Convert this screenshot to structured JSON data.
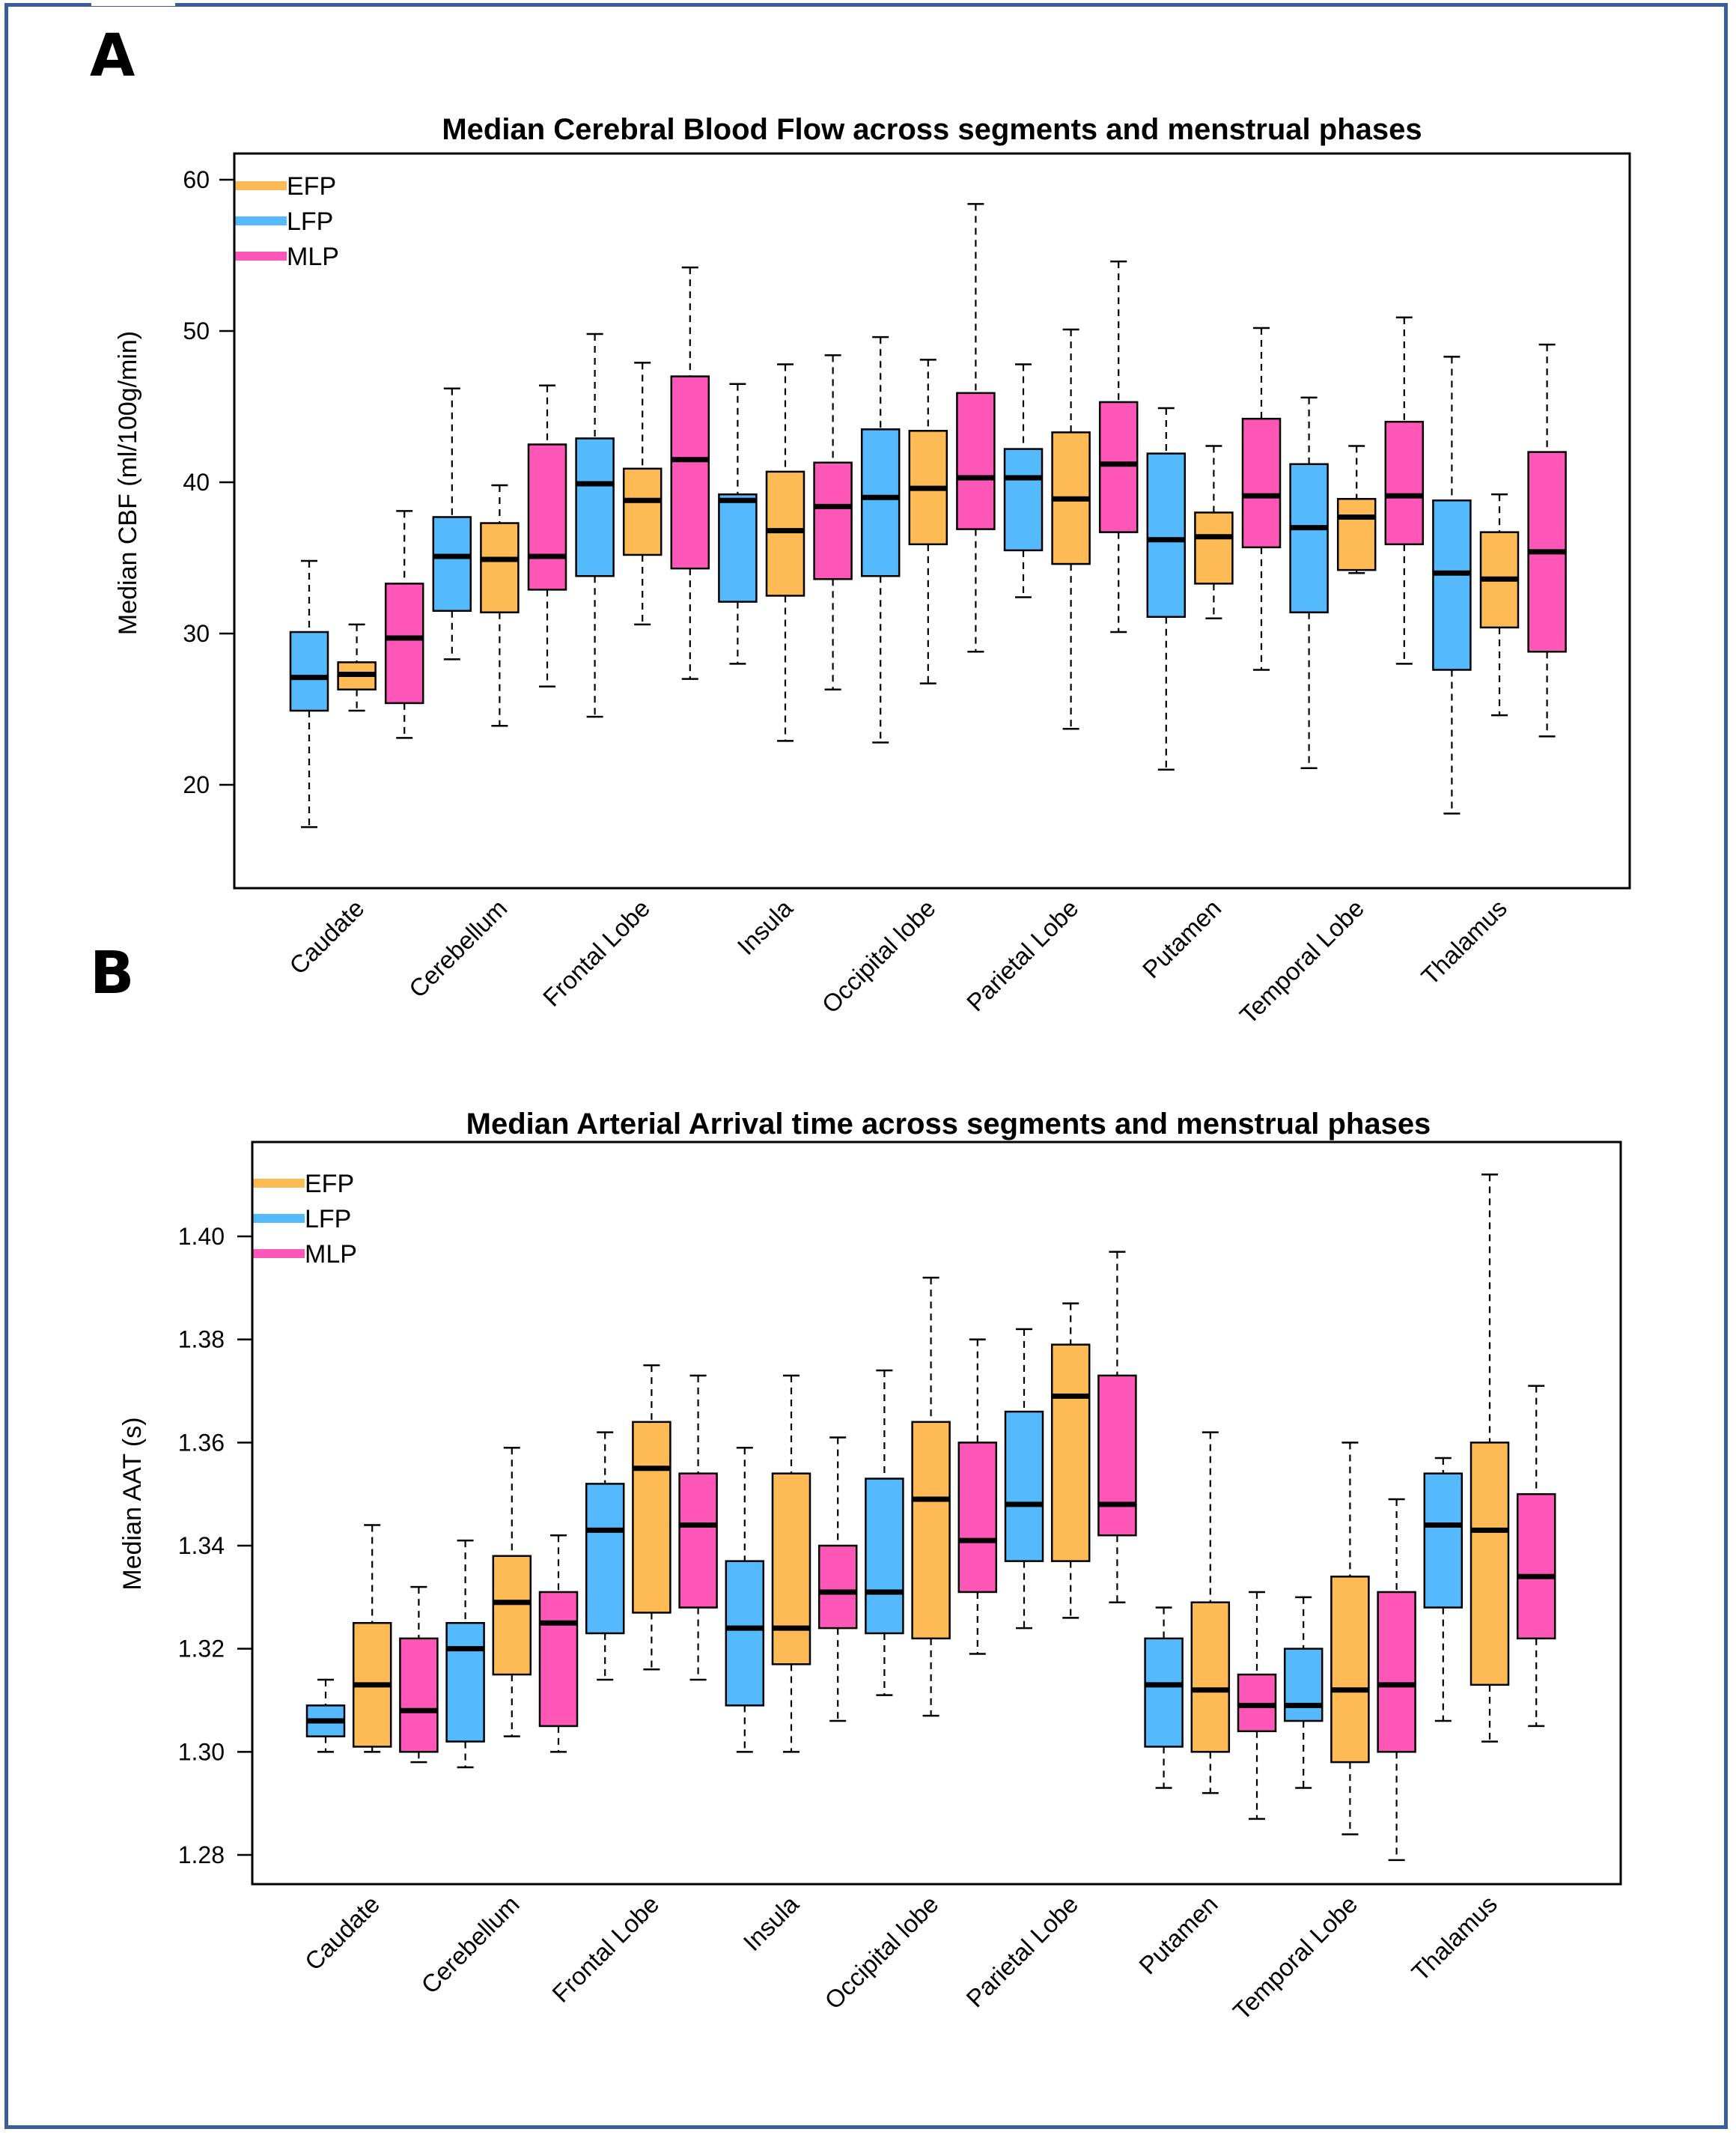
{
  "figure": {
    "panel_labels": [
      "A",
      "B"
    ]
  },
  "colors": {
    "EFP": "#FEBA54",
    "LFP": "#55BAFD",
    "MLP": "#FF57B8",
    "frame": "#3a5e9c"
  },
  "chart_data": [
    {
      "type": "boxplot",
      "panel": "A",
      "title": "Median Cerebral Blood Flow across segments and menstrual phases",
      "xlabel": "",
      "ylabel": "Median CBF (ml/100g/min)",
      "ylim": [
        13,
        62.5
      ],
      "yticks": [
        20,
        30,
        40,
        50,
        60
      ],
      "grid": false,
      "legend": {
        "position": "top-left",
        "entries": [
          "EFP",
          "LFP",
          "MLP"
        ]
      },
      "categories": [
        "Caudate",
        "Cerebellum",
        "Frontal Lobe",
        "Insula",
        "Occipital lobe",
        "Parietal Lobe",
        "Putamen",
        "Temporal Lobe",
        "Thalamus"
      ],
      "box_order": [
        "LFP",
        "EFP",
        "MLP"
      ],
      "boxes": [
        {
          "category": "Caudate",
          "phase": "LFP",
          "whisker_low": 17.2,
          "q1": 24.9,
          "median": 27.1,
          "q3": 30.1,
          "whisker_high": 34.8
        },
        {
          "category": "Caudate",
          "phase": "EFP",
          "whisker_low": 24.9,
          "q1": 26.3,
          "median": 27.3,
          "q3": 28.1,
          "whisker_high": 30.6
        },
        {
          "category": "Caudate",
          "phase": "MLP",
          "whisker_low": 23.1,
          "q1": 25.4,
          "median": 29.7,
          "q3": 33.3,
          "whisker_high": 38.1
        },
        {
          "category": "Cerebellum",
          "phase": "LFP",
          "whisker_low": 28.3,
          "q1": 31.5,
          "median": 35.1,
          "q3": 37.7,
          "whisker_high": 46.2
        },
        {
          "category": "Cerebellum",
          "phase": "EFP",
          "whisker_low": 23.9,
          "q1": 31.4,
          "median": 34.9,
          "q3": 37.3,
          "whisker_high": 39.8
        },
        {
          "category": "Cerebellum",
          "phase": "MLP",
          "whisker_low": 26.5,
          "q1": 32.9,
          "median": 35.1,
          "q3": 42.5,
          "whisker_high": 46.4
        },
        {
          "category": "Frontal Lobe",
          "phase": "LFP",
          "whisker_low": 24.5,
          "q1": 33.8,
          "median": 39.9,
          "q3": 42.9,
          "whisker_high": 49.8
        },
        {
          "category": "Frontal Lobe",
          "phase": "EFP",
          "whisker_low": 30.6,
          "q1": 35.2,
          "median": 38.8,
          "q3": 40.9,
          "whisker_high": 47.9
        },
        {
          "category": "Frontal Lobe",
          "phase": "MLP",
          "whisker_low": 27.0,
          "q1": 34.3,
          "median": 41.5,
          "q3": 47.0,
          "whisker_high": 54.2
        },
        {
          "category": "Insula",
          "phase": "LFP",
          "whisker_low": 28.0,
          "q1": 32.1,
          "median": 38.8,
          "q3": 39.2,
          "whisker_high": 46.5
        },
        {
          "category": "Insula",
          "phase": "EFP",
          "whisker_low": 22.9,
          "q1": 32.5,
          "median": 36.8,
          "q3": 40.7,
          "whisker_high": 47.8
        },
        {
          "category": "Insula",
          "phase": "MLP",
          "whisker_low": 26.3,
          "q1": 33.6,
          "median": 38.4,
          "q3": 41.3,
          "whisker_high": 48.4
        },
        {
          "category": "Occipital lobe",
          "phase": "LFP",
          "whisker_low": 22.8,
          "q1": 33.8,
          "median": 39.0,
          "q3": 43.5,
          "whisker_high": 49.6
        },
        {
          "category": "Occipital lobe",
          "phase": "EFP",
          "whisker_low": 26.7,
          "q1": 35.9,
          "median": 39.6,
          "q3": 43.4,
          "whisker_high": 48.1
        },
        {
          "category": "Occipital lobe",
          "phase": "MLP",
          "whisker_low": 28.8,
          "q1": 36.9,
          "median": 40.3,
          "q3": 45.9,
          "whisker_high": 58.4
        },
        {
          "category": "Parietal Lobe",
          "phase": "LFP",
          "whisker_low": 32.4,
          "q1": 35.5,
          "median": 40.3,
          "q3": 42.2,
          "whisker_high": 47.8
        },
        {
          "category": "Parietal Lobe",
          "phase": "EFP",
          "whisker_low": 23.7,
          "q1": 34.6,
          "median": 38.9,
          "q3": 43.3,
          "whisker_high": 50.1
        },
        {
          "category": "Parietal Lobe",
          "phase": "MLP",
          "whisker_low": 30.1,
          "q1": 36.7,
          "median": 41.2,
          "q3": 45.3,
          "whisker_high": 54.6
        },
        {
          "category": "Putamen",
          "phase": "LFP",
          "whisker_low": 21.0,
          "q1": 31.1,
          "median": 36.2,
          "q3": 41.9,
          "whisker_high": 44.9
        },
        {
          "category": "Putamen",
          "phase": "EFP",
          "whisker_low": 31.0,
          "q1": 33.3,
          "median": 36.4,
          "q3": 38.0,
          "whisker_high": 42.4
        },
        {
          "category": "Putamen",
          "phase": "MLP",
          "whisker_low": 27.6,
          "q1": 35.7,
          "median": 39.1,
          "q3": 44.2,
          "whisker_high": 50.2
        },
        {
          "category": "Temporal Lobe",
          "phase": "LFP",
          "whisker_low": 21.1,
          "q1": 31.4,
          "median": 37.0,
          "q3": 41.2,
          "whisker_high": 45.6
        },
        {
          "category": "Temporal Lobe",
          "phase": "EFP",
          "whisker_low": 34.0,
          "q1": 34.2,
          "median": 37.7,
          "q3": 38.9,
          "whisker_high": 42.4
        },
        {
          "category": "Temporal Lobe",
          "phase": "MLP",
          "whisker_low": 28.0,
          "q1": 35.9,
          "median": 39.1,
          "q3": 44.0,
          "whisker_high": 50.9
        },
        {
          "category": "Thalamus",
          "phase": "LFP",
          "whisker_low": 18.1,
          "q1": 27.6,
          "median": 34.0,
          "q3": 38.8,
          "whisker_high": 48.3
        },
        {
          "category": "Thalamus",
          "phase": "EFP",
          "whisker_low": 24.6,
          "q1": 30.4,
          "median": 33.6,
          "q3": 36.7,
          "whisker_high": 39.2
        },
        {
          "category": "Thalamus",
          "phase": "MLP",
          "whisker_low": 23.2,
          "q1": 28.8,
          "median": 35.4,
          "q3": 42.0,
          "whisker_high": 49.1
        }
      ]
    },
    {
      "type": "boxplot",
      "panel": "B",
      "title": "Median Arterial Arrival time across segments and menstrual phases",
      "xlabel": "",
      "ylabel": "Median AAT (s)",
      "ylim": [
        1.2735,
        1.4165
      ],
      "yticks": [
        1.28,
        1.3,
        1.32,
        1.34,
        1.36,
        1.38,
        1.4
      ],
      "ytick_labels": [
        "1.28",
        "1.30",
        "1.32",
        "1.34",
        "1.36",
        "1.38",
        "1.40"
      ],
      "grid": false,
      "legend": {
        "position": "top-left",
        "entries": [
          "EFP",
          "LFP",
          "MLP"
        ]
      },
      "categories": [
        "Caudate",
        "Cerebellum",
        "Frontal Lobe",
        "Insula",
        "Occipital lobe",
        "Parietal Lobe",
        "Putamen",
        "Temporal Lobe",
        "Thalamus"
      ],
      "box_order": [
        "LFP",
        "EFP",
        "MLP"
      ],
      "boxes": [
        {
          "category": "Caudate",
          "phase": "LFP",
          "whisker_low": 1.3,
          "q1": 1.303,
          "median": 1.306,
          "q3": 1.309,
          "whisker_high": 1.314
        },
        {
          "category": "Caudate",
          "phase": "EFP",
          "whisker_low": 1.3,
          "q1": 1.301,
          "median": 1.313,
          "q3": 1.325,
          "whisker_high": 1.344
        },
        {
          "category": "Caudate",
          "phase": "MLP",
          "whisker_low": 1.298,
          "q1": 1.3,
          "median": 1.308,
          "q3": 1.322,
          "whisker_high": 1.332
        },
        {
          "category": "Cerebellum",
          "phase": "LFP",
          "whisker_low": 1.297,
          "q1": 1.302,
          "median": 1.32,
          "q3": 1.325,
          "whisker_high": 1.341
        },
        {
          "category": "Cerebellum",
          "phase": "EFP",
          "whisker_low": 1.303,
          "q1": 1.315,
          "median": 1.329,
          "q3": 1.338,
          "whisker_high": 1.359
        },
        {
          "category": "Cerebellum",
          "phase": "MLP",
          "whisker_low": 1.3,
          "q1": 1.305,
          "median": 1.325,
          "q3": 1.331,
          "whisker_high": 1.342
        },
        {
          "category": "Frontal Lobe",
          "phase": "LFP",
          "whisker_low": 1.314,
          "q1": 1.323,
          "median": 1.343,
          "q3": 1.352,
          "whisker_high": 1.362
        },
        {
          "category": "Frontal Lobe",
          "phase": "EFP",
          "whisker_low": 1.316,
          "q1": 1.327,
          "median": 1.355,
          "q3": 1.364,
          "whisker_high": 1.375
        },
        {
          "category": "Frontal Lobe",
          "phase": "MLP",
          "whisker_low": 1.314,
          "q1": 1.328,
          "median": 1.344,
          "q3": 1.354,
          "whisker_high": 1.373
        },
        {
          "category": "Insula",
          "phase": "LFP",
          "whisker_low": 1.3,
          "q1": 1.309,
          "median": 1.324,
          "q3": 1.337,
          "whisker_high": 1.359
        },
        {
          "category": "Insula",
          "phase": "EFP",
          "whisker_low": 1.3,
          "q1": 1.317,
          "median": 1.324,
          "q3": 1.354,
          "whisker_high": 1.373
        },
        {
          "category": "Insula",
          "phase": "MLP",
          "whisker_low": 1.306,
          "q1": 1.324,
          "median": 1.331,
          "q3": 1.34,
          "whisker_high": 1.361
        },
        {
          "category": "Occipital lobe",
          "phase": "LFP",
          "whisker_low": 1.311,
          "q1": 1.323,
          "median": 1.331,
          "q3": 1.353,
          "whisker_high": 1.374
        },
        {
          "category": "Occipital lobe",
          "phase": "EFP",
          "whisker_low": 1.307,
          "q1": 1.322,
          "median": 1.349,
          "q3": 1.364,
          "whisker_high": 1.392
        },
        {
          "category": "Occipital lobe",
          "phase": "MLP",
          "whisker_low": 1.319,
          "q1": 1.331,
          "median": 1.341,
          "q3": 1.36,
          "whisker_high": 1.38
        },
        {
          "category": "Parietal Lobe",
          "phase": "LFP",
          "whisker_low": 1.324,
          "q1": 1.337,
          "median": 1.348,
          "q3": 1.366,
          "whisker_high": 1.382
        },
        {
          "category": "Parietal Lobe",
          "phase": "EFP",
          "whisker_low": 1.326,
          "q1": 1.337,
          "median": 1.369,
          "q3": 1.379,
          "whisker_high": 1.387
        },
        {
          "category": "Parietal Lobe",
          "phase": "MLP",
          "whisker_low": 1.329,
          "q1": 1.342,
          "median": 1.348,
          "q3": 1.373,
          "whisker_high": 1.397
        },
        {
          "category": "Putamen",
          "phase": "LFP",
          "whisker_low": 1.293,
          "q1": 1.301,
          "median": 1.313,
          "q3": 1.322,
          "whisker_high": 1.328
        },
        {
          "category": "Putamen",
          "phase": "EFP",
          "whisker_low": 1.292,
          "q1": 1.3,
          "median": 1.312,
          "q3": 1.329,
          "whisker_high": 1.362
        },
        {
          "category": "Putamen",
          "phase": "MLP",
          "whisker_low": 1.287,
          "q1": 1.304,
          "median": 1.309,
          "q3": 1.315,
          "whisker_high": 1.331
        },
        {
          "category": "Temporal Lobe",
          "phase": "LFP",
          "whisker_low": 1.293,
          "q1": 1.306,
          "median": 1.309,
          "q3": 1.32,
          "whisker_high": 1.33
        },
        {
          "category": "Temporal Lobe",
          "phase": "EFP",
          "whisker_low": 1.284,
          "q1": 1.298,
          "median": 1.312,
          "q3": 1.334,
          "whisker_high": 1.36
        },
        {
          "category": "Temporal Lobe",
          "phase": "MLP",
          "whisker_low": 1.279,
          "q1": 1.3,
          "median": 1.313,
          "q3": 1.331,
          "whisker_high": 1.349
        },
        {
          "category": "Thalamus",
          "phase": "LFP",
          "whisker_low": 1.306,
          "q1": 1.328,
          "median": 1.344,
          "q3": 1.354,
          "whisker_high": 1.357
        },
        {
          "category": "Thalamus",
          "phase": "EFP",
          "whisker_low": 1.302,
          "q1": 1.313,
          "median": 1.343,
          "q3": 1.36,
          "whisker_high": 1.412
        },
        {
          "category": "Thalamus",
          "phase": "MLP",
          "whisker_low": 1.305,
          "q1": 1.322,
          "median": 1.334,
          "q3": 1.35,
          "whisker_high": 1.371
        }
      ]
    }
  ]
}
